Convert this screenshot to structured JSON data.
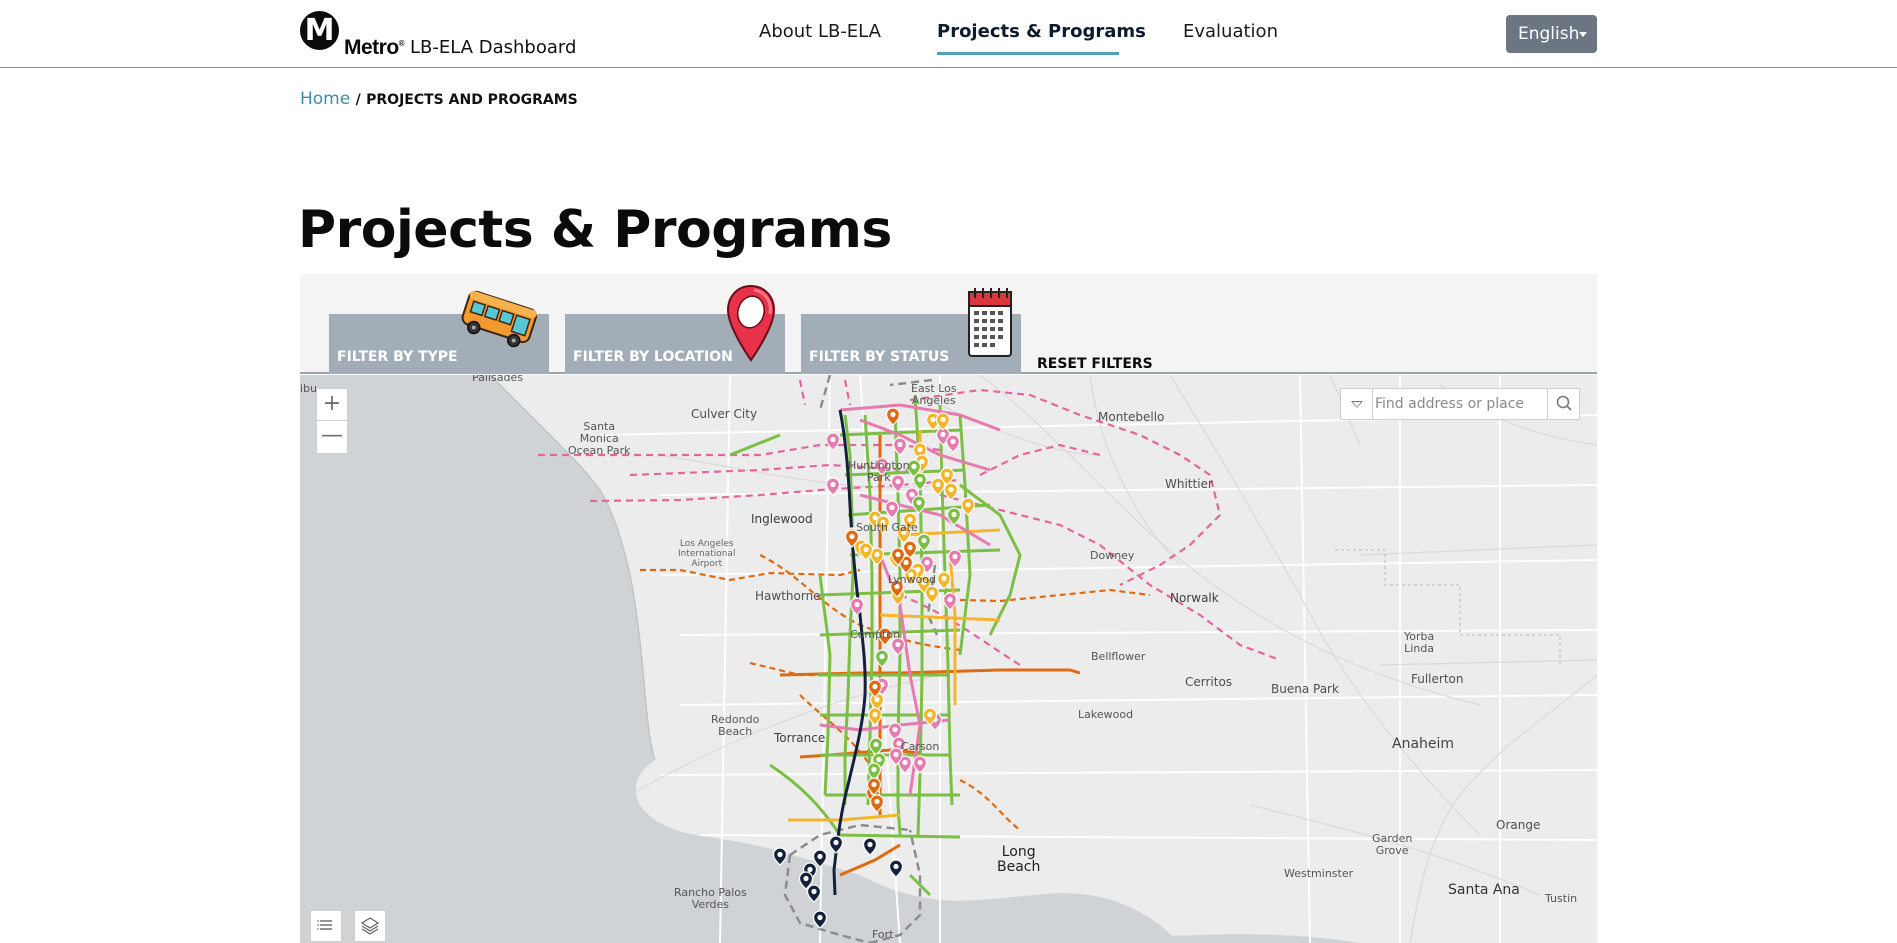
{
  "header": {
    "logo_letter": "M",
    "brand_word": "Metro",
    "brand_title": "LB-ELA Dashboard",
    "nav": [
      {
        "label": "About LB-ELA"
      },
      {
        "label": "Projects & Programs"
      },
      {
        "label": "Evaluation"
      }
    ],
    "language": "English"
  },
  "breadcrumb": {
    "home": "Home",
    "separator": "/",
    "current": "PROJECTS AND PROGRAMS"
  },
  "page_title": "Projects & Programs",
  "filters": {
    "type_label": "FILTER BY TYPE",
    "location_label": "FILTER BY LOCATION",
    "status_label": "FILTER BY STATUS",
    "reset_label": "RESET FILTERS"
  },
  "map": {
    "search_placeholder": "Find address or place",
    "zoom_in": "+",
    "zoom_out": "—",
    "places": {
      "palisades": "Palisades",
      "ibu": "ibu",
      "santa_monica": "Santa\nMonica\nOcean Park",
      "culver_city": "Culver City",
      "east_los_angeles": "East Los\nAngeles",
      "montebello": "Montebello",
      "huntington_park": "Huntington\nPark",
      "whittier": "Whittier",
      "inglewood": "Inglewood",
      "south_gate": "South Gate",
      "lax": "Los Angeles\nInternational\nAirport",
      "downey": "Downey",
      "lynwood": "Lynwood",
      "hawthorne": "Hawthorne",
      "norwalk": "Norwalk",
      "compton": "Compton",
      "yorba_linda": "Yorba\nLinda",
      "bellflower": "Bellflower",
      "cerritos": "Cerritos",
      "buena_park": "Buena Park",
      "fullerton": "Fullerton",
      "redondo_beach": "Redondo\nBeach",
      "torrance": "Torrance",
      "lakewood": "Lakewood",
      "anaheim": "Anaheim",
      "carson": "Carson",
      "orange": "Orange",
      "long_beach": "Long\nBeach",
      "garden_grove": "Garden\nGrove",
      "rancho_palos_verdes": "Rancho Palos\nVerdes",
      "westminster": "Westminster",
      "santa_ana": "Santa Ana",
      "tustin": "Tustin",
      "fort": "Fort"
    },
    "colors": {
      "water": "#cfd3d6",
      "land": "#ececec",
      "green_lines": "#7bbf44",
      "orange_lines": "#e06a10",
      "yellow_lines": "#f5b52b",
      "pink_dashed": "#e6669c",
      "pink_solid": "#e77aaf",
      "navy_line": "#13213f"
    }
  }
}
